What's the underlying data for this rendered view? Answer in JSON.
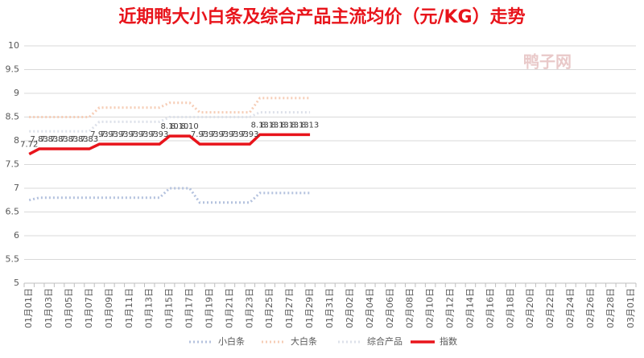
{
  "chart_data": {
    "type": "line",
    "title": "近期鸭大小白条及综合产品主流均价（元/KG）走势",
    "annotations": [
      "鸭子网"
    ],
    "categories": [
      "01月01日",
      null,
      "01月03日",
      null,
      "01月05日",
      null,
      "01月07日",
      null,
      "01月09日",
      null,
      "01月11日",
      null,
      "01月13日",
      null,
      "01月15日",
      null,
      "01月17日",
      null,
      "01月19日",
      null,
      "01月21日",
      null,
      "01月23日",
      null,
      "01月25日",
      null,
      "01月27日",
      null,
      "01月29日",
      null,
      "01月31日",
      null,
      "02月02日",
      null,
      "02月04日",
      null,
      "02月06日",
      null,
      "02月08日",
      null,
      "02月10日",
      null,
      "02月12日",
      null,
      "02月14日",
      null,
      "02月16日",
      null,
      "02月18日",
      null,
      "02月20日",
      null,
      "02月22日",
      null,
      "02月24日",
      null,
      "02月26日",
      null,
      "02月28日",
      null,
      "03月01日"
    ],
    "series": [
      {
        "name": "小白条",
        "color": "#b4c2de",
        "dash": "dot",
        "values": [
          6.75,
          6.8,
          6.8,
          6.8,
          6.8,
          6.8,
          6.8,
          6.8,
          6.8,
          6.8,
          6.8,
          6.8,
          6.8,
          6.8,
          7.0,
          7.0,
          7.0,
          6.7,
          6.7,
          6.7,
          6.7,
          6.7,
          6.7,
          6.9,
          6.9,
          6.9,
          6.9,
          6.9,
          6.9,
          null,
          null,
          null,
          null,
          null,
          null,
          null,
          null,
          null,
          null,
          null,
          null,
          null,
          null,
          null,
          null,
          null,
          null,
          null,
          null,
          null,
          null,
          null,
          null,
          null,
          null,
          null,
          null,
          null,
          null,
          null,
          null
        ]
      },
      {
        "name": "大白条",
        "color": "#f6cdb6",
        "dash": "dot",
        "values": [
          8.5,
          8.5,
          8.5,
          8.5,
          8.5,
          8.5,
          8.5,
          8.7,
          8.7,
          8.7,
          8.7,
          8.7,
          8.7,
          8.7,
          8.8,
          8.8,
          8.8,
          8.6,
          8.6,
          8.6,
          8.6,
          8.6,
          8.6,
          8.9,
          8.9,
          8.9,
          8.9,
          8.9,
          8.9,
          null,
          null,
          null,
          null,
          null,
          null,
          null,
          null,
          null,
          null,
          null,
          null,
          null,
          null,
          null,
          null,
          null,
          null,
          null,
          null,
          null,
          null,
          null,
          null,
          null,
          null,
          null,
          null,
          null,
          null,
          null,
          null
        ]
      },
      {
        "name": "综合产品",
        "color": "#dde1ea",
        "dash": "dot",
        "values": [
          8.2,
          8.2,
          8.2,
          8.2,
          8.2,
          8.2,
          8.2,
          8.4,
          8.4,
          8.4,
          8.4,
          8.4,
          8.4,
          8.4,
          8.5,
          8.5,
          8.5,
          8.5,
          8.5,
          8.5,
          8.5,
          8.5,
          8.5,
          8.6,
          8.6,
          8.6,
          8.6,
          8.6,
          8.6,
          null,
          null,
          null,
          null,
          null,
          null,
          null,
          null,
          null,
          null,
          null,
          null,
          null,
          null,
          null,
          null,
          null,
          null,
          null,
          null,
          null,
          null,
          null,
          null,
          null,
          null,
          null,
          null,
          null,
          null,
          null,
          null
        ]
      },
      {
        "name": "指数",
        "color": "#e8141b",
        "dash": "solid",
        "values": [
          7.72,
          7.83,
          7.83,
          7.83,
          7.83,
          7.83,
          7.83,
          7.93,
          7.93,
          7.93,
          7.93,
          7.93,
          7.93,
          7.93,
          8.1,
          8.1,
          8.1,
          7.93,
          7.93,
          7.93,
          7.93,
          7.93,
          7.93,
          8.13,
          8.13,
          8.13,
          8.13,
          8.13,
          8.13,
          null,
          null,
          null,
          null,
          null,
          null,
          null,
          null,
          null,
          null,
          null,
          null,
          null,
          null,
          null,
          null,
          null,
          null,
          null,
          null,
          null,
          null,
          null,
          null,
          null,
          null,
          null,
          null,
          null,
          null,
          null,
          null
        ],
        "value_labels": [
          "7.72",
          "7.83",
          "7.83",
          "7.83",
          "7.83",
          "7.83",
          "7.83",
          "7.93",
          "7.93",
          "7.93",
          "7.93",
          "7.93",
          "7.93",
          "7.93",
          "8.10",
          "8.10",
          "8.10",
          "7.93",
          "7.93",
          "7.93",
          "7.93",
          "7.93",
          "7.93",
          "8.13",
          "8.13",
          "8.13",
          "8.13",
          "8.13",
          "8.13",
          null,
          null,
          null,
          null,
          null,
          null,
          null,
          null,
          null,
          null,
          null,
          null,
          null,
          null,
          null,
          null,
          null,
          null,
          null,
          null,
          null,
          null,
          null,
          null,
          null,
          null,
          null,
          null,
          null,
          null,
          null,
          null
        ]
      }
    ],
    "ylim": [
      5,
      10
    ],
    "yticks": [
      5,
      5.5,
      6,
      6.5,
      7,
      7.5,
      8,
      8.5,
      9,
      9.5,
      10
    ],
    "grid": true,
    "legend": "bottom"
  }
}
